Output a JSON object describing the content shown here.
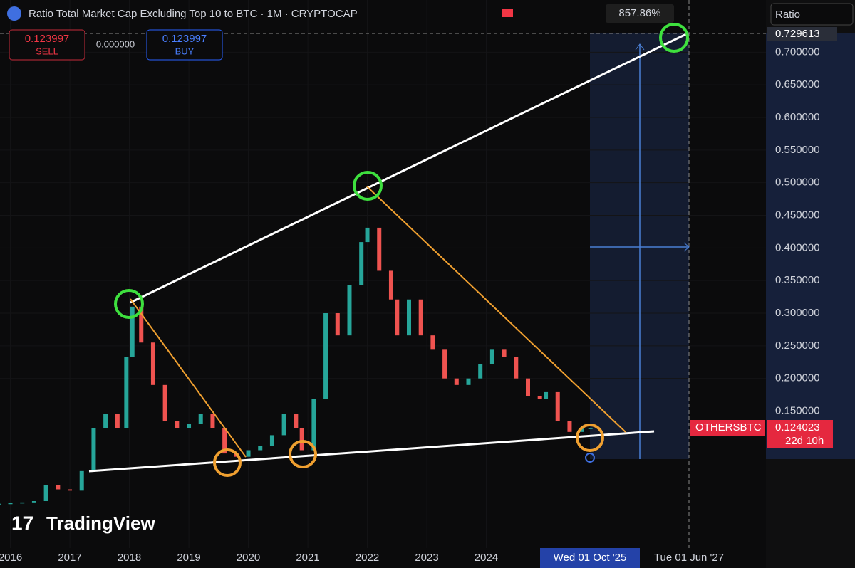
{
  "ui": {
    "title": "Ratio Total Market Cap Excluding Top 10 to BTC · 1M · CRYPTOCAP",
    "sell_price": "0.123997",
    "sell": "SELL",
    "spread": "0.000000",
    "buy_price": "0.123997",
    "buy": "BUY",
    "measure": "857.86%",
    "scale_mode": "Ratio",
    "cross_price": "0.729613",
    "symbol": "OTHERSBTC",
    "last_price": "0.124023",
    "countdown": "22d 10h",
    "brand": "TradingView",
    "cross_date": "Wed 01 Oct '25",
    "end_date": "Tue 01 Jun '27"
  },
  "chart_data": {
    "type": "candlestick",
    "up_color": "#26a69a",
    "down_color": "#ef5350",
    "x": [
      2015.8,
      2016.0,
      2016.2,
      2016.4,
      2016.6,
      2016.8,
      2017.0,
      2017.2,
      2017.4,
      2017.6,
      2017.8,
      2017.95,
      2018.05,
      2018.2,
      2018.4,
      2018.6,
      2018.8,
      2019.0,
      2019.2,
      2019.4,
      2019.6,
      2019.8,
      2020.0,
      2020.2,
      2020.4,
      2020.6,
      2020.8,
      2020.9,
      2021.1,
      2021.3,
      2021.5,
      2021.7,
      2021.9,
      2022.0,
      2022.2,
      2022.4,
      2022.5,
      2022.7,
      2022.9,
      2023.1,
      2023.3,
      2023.5,
      2023.7,
      2023.9,
      2024.1,
      2024.3,
      2024.5,
      2024.7,
      2024.9,
      2025.0,
      2025.2,
      2025.4,
      2025.6,
      2025.75
    ],
    "values": [
      0.008,
      0.009,
      0.01,
      0.012,
      0.036,
      0.03,
      0.028,
      0.058,
      0.124,
      0.146,
      0.124,
      0.233,
      0.31,
      0.255,
      0.19,
      0.135,
      0.124,
      0.13,
      0.146,
      0.124,
      0.085,
      0.08,
      0.09,
      0.096,
      0.113,
      0.146,
      0.124,
      0.09,
      0.168,
      0.3,
      0.266,
      0.343,
      0.409,
      0.431,
      0.365,
      0.321,
      0.266,
      0.321,
      0.266,
      0.244,
      0.2,
      0.19,
      0.2,
      0.222,
      0.244,
      0.233,
      0.2,
      0.173,
      0.168,
      0.179,
      0.135,
      0.118,
      0.124,
      0.124
    ],
    "xlim": [
      2015.826,
      2028.7
    ],
    "ylim": [
      -0.06,
      0.78
    ],
    "xticks": [
      2016,
      2017,
      2018,
      2019,
      2020,
      2021,
      2022,
      2023,
      2024
    ],
    "yticks": [
      {
        "value": 0.15,
        "label": "0.150000"
      },
      {
        "value": 0.2,
        "label": "0.200000"
      },
      {
        "value": 0.25,
        "label": "0.250000"
      },
      {
        "value": 0.3,
        "label": "0.300000"
      },
      {
        "value": 0.35,
        "label": "0.350000"
      },
      {
        "value": 0.4,
        "label": "0.400000"
      },
      {
        "value": 0.45,
        "label": "0.450000"
      },
      {
        "value": 0.5,
        "label": "0.500000"
      },
      {
        "value": 0.55,
        "label": "0.550000"
      },
      {
        "value": 0.6,
        "label": "0.600000"
      },
      {
        "value": 0.65,
        "label": "0.650000"
      },
      {
        "value": 0.7,
        "label": "0.700000"
      }
    ]
  }
}
